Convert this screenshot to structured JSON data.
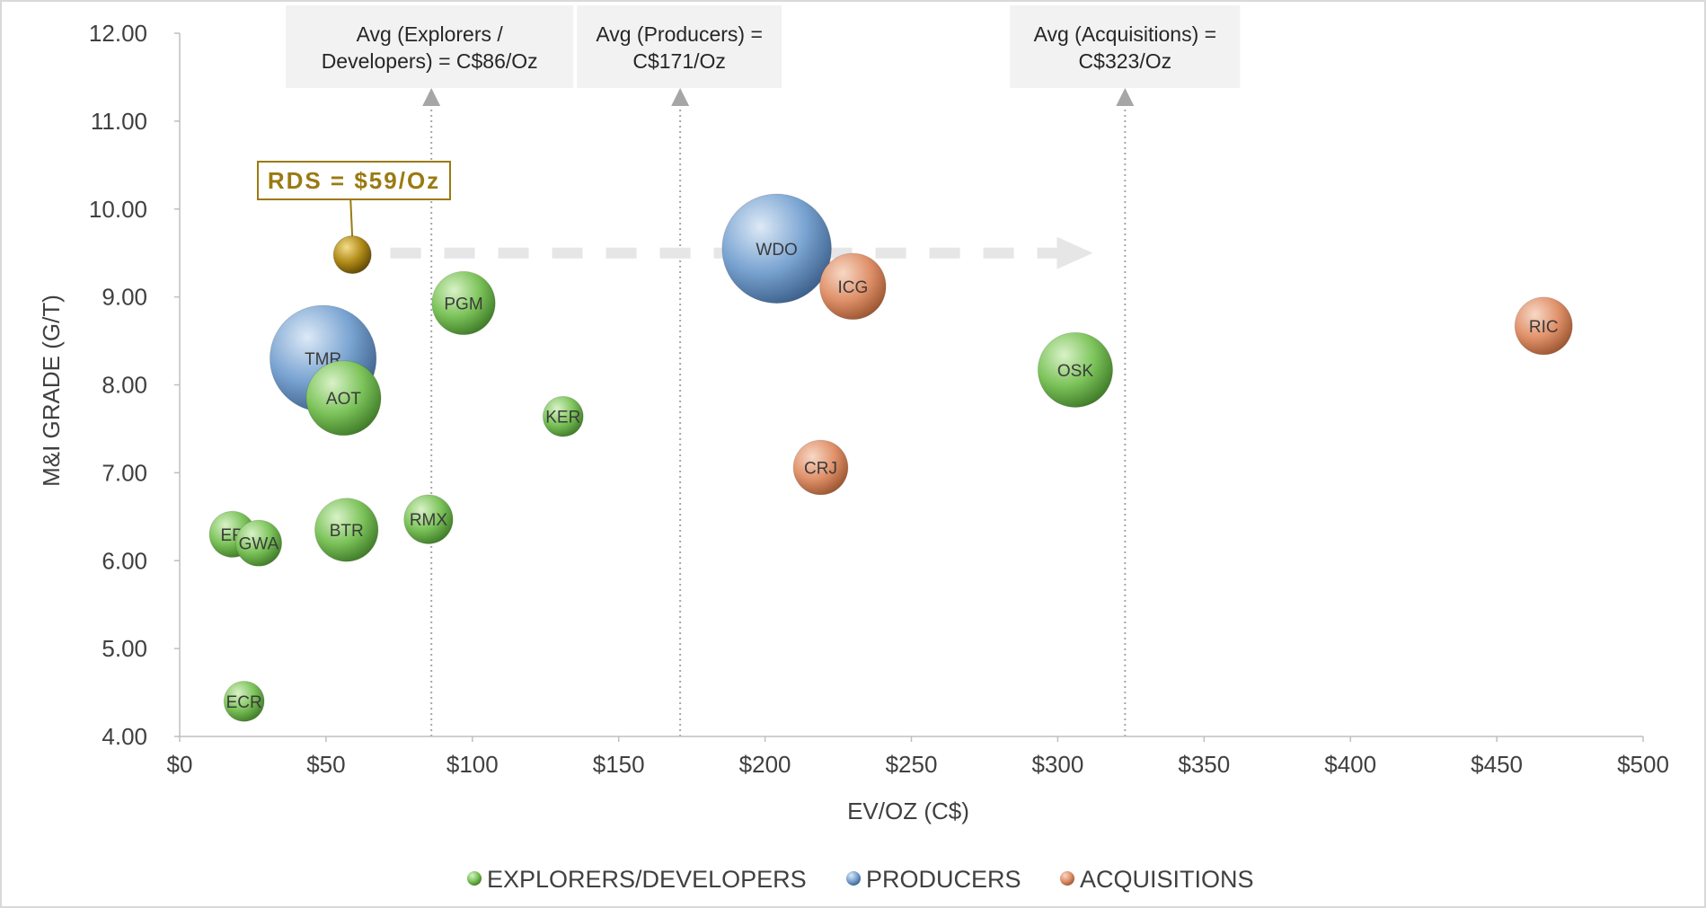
{
  "chart_data": {
    "type": "scatter",
    "variant": "bubble",
    "xlabel": "EV/OZ (C$)",
    "ylabel": "M&I GRADE (G/T)",
    "xlim": [
      0,
      500
    ],
    "ylim": [
      4,
      12
    ],
    "x_ticks": [
      {
        "value": 0,
        "label": "$0"
      },
      {
        "value": 50,
        "label": "$50"
      },
      {
        "value": 100,
        "label": "$100"
      },
      {
        "value": 150,
        "label": "$150"
      },
      {
        "value": 200,
        "label": "$200"
      },
      {
        "value": 250,
        "label": "$250"
      },
      {
        "value": 300,
        "label": "$300"
      },
      {
        "value": 350,
        "label": "$350"
      },
      {
        "value": 400,
        "label": "$400"
      },
      {
        "value": 450,
        "label": "$450"
      },
      {
        "value": 500,
        "label": "$500"
      }
    ],
    "y_ticks": [
      {
        "value": 4,
        "label": "4.00"
      },
      {
        "value": 5,
        "label": "5.00"
      },
      {
        "value": 6,
        "label": "6.00"
      },
      {
        "value": 7,
        "label": "7.00"
      },
      {
        "value": 8,
        "label": "8.00"
      },
      {
        "value": 9,
        "label": "9.00"
      },
      {
        "value": 10,
        "label": "10.00"
      },
      {
        "value": 11,
        "label": "11.00"
      },
      {
        "value": 12,
        "label": "12.00"
      }
    ],
    "grid": false,
    "legend_position": "bottom",
    "series": [
      {
        "name": "EXPLORERS/DEVELOPERS",
        "color": "#7cc35a",
        "points": [
          {
            "label": "ER",
            "x": 18,
            "y": 6.3,
            "size": 0.55
          },
          {
            "label": "GWA",
            "x": 27,
            "y": 6.2,
            "size": 0.55
          },
          {
            "label": "ECR",
            "x": 22,
            "y": 4.4,
            "size": 0.45
          },
          {
            "label": "AOT",
            "x": 56,
            "y": 7.85,
            "size": 1.05
          },
          {
            "label": "BTR",
            "x": 57,
            "y": 6.35,
            "size": 0.85
          },
          {
            "label": "RMX",
            "x": 85,
            "y": 6.47,
            "size": 0.6
          },
          {
            "label": "PGM",
            "x": 97,
            "y": 8.93,
            "size": 0.85
          },
          {
            "label": "KER",
            "x": 131,
            "y": 7.64,
            "size": 0.45
          },
          {
            "label": "OSK",
            "x": 306,
            "y": 8.17,
            "size": 1.05
          }
        ]
      },
      {
        "name": "PRODUCERS",
        "color": "#7aa4d2",
        "points": [
          {
            "label": "TMR",
            "x": 49,
            "y": 8.3,
            "size": 1.6
          },
          {
            "label": "WDO",
            "x": 204,
            "y": 9.55,
            "size": 1.65
          }
        ]
      },
      {
        "name": "ACQUISITIONS",
        "color": "#e0916a",
        "points": [
          {
            "label": "ICG",
            "x": 230,
            "y": 9.12,
            "size": 0.9
          },
          {
            "label": "CRJ",
            "x": 219,
            "y": 7.06,
            "size": 0.7
          },
          {
            "label": "RIC",
            "x": 466,
            "y": 8.67,
            "size": 0.75
          }
        ]
      }
    ],
    "highlight": {
      "label": "RDS = $59/Oz",
      "x": 59,
      "y": 9.48,
      "color": "#b08a16"
    },
    "reference_lines": [
      {
        "x": 86,
        "label_line1": "Avg (Explorers /",
        "label_line2": "Developers) = C$86/Oz"
      },
      {
        "x": 171,
        "label_line1": "Avg (Producers) =",
        "label_line2": "C$171/Oz"
      },
      {
        "x": 323,
        "label_line1": "Avg (Acquisitions) =",
        "label_line2": "C$323/Oz"
      }
    ],
    "trend_arrow": {
      "x_start": 72,
      "x_end": 312,
      "y": 9.5
    }
  }
}
